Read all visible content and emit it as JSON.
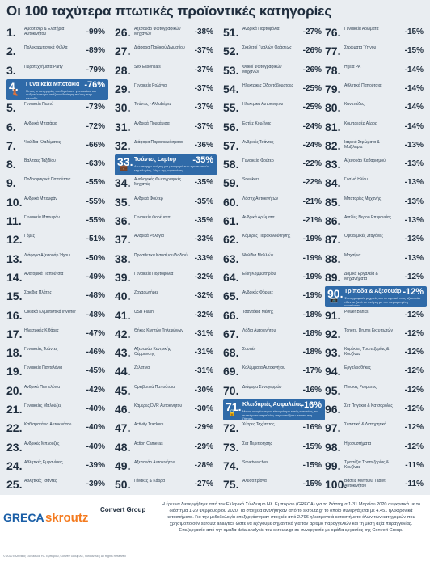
{
  "title": "Οι 100 ταχύτερα πτωτικές προϊοντικές κατηγορίες",
  "columns": [
    [
      {
        "n": "1.",
        "name": "Αμορτισέρ & Ελατήρια Αυτοκινήτου",
        "pct": "-99%"
      },
      {
        "n": "2.",
        "name": "Πολυκαρμπονικά Φύλλα",
        "pct": "-89%"
      },
      {
        "n": "3.",
        "name": "Πυροτεχνήματα Party",
        "pct": "-79%"
      },
      {
        "n": "4.",
        "name": "Γυναικεία Μποτάκια",
        "pct": "-76%",
        "hl": true,
        "desc": "Όπως οι κατηγορίες υποδημάτων, γυναικείων και ανδρικών παρουσιάζουν ιδιαίτερη πτώση στην περίοδο.",
        "icon": "boot-icon"
      },
      {
        "n": "5.",
        "name": "Γυναικεία Παλτό",
        "pct": "-73%"
      },
      {
        "n": "6.",
        "name": "Ανδρικά Μποτάκια",
        "pct": "-72%"
      },
      {
        "n": "7.",
        "name": "Ψαλίδια Κλαδέματος",
        "pct": "-66%"
      },
      {
        "n": "8.",
        "name": "Βαλίτσες Ταξιδίου",
        "pct": "-63%"
      },
      {
        "n": "9.",
        "name": "Ποδοσφαιρικά Παπούτσια",
        "pct": "-55%"
      },
      {
        "n": "10.",
        "name": "Ανδρικά Μπουφάν",
        "pct": "-55%"
      },
      {
        "n": "11.",
        "name": "Γυναικεία Μπουφάν",
        "pct": "-55%"
      },
      {
        "n": "12.",
        "name": "Γόβες",
        "pct": "-51%"
      },
      {
        "n": "13.",
        "name": "Διάφορα Αξεσουάρ Ήχου",
        "pct": "-50%"
      },
      {
        "n": "14.",
        "name": "Ανατομικά Παπούτσια",
        "pct": "-49%"
      },
      {
        "n": "15.",
        "name": "Σακίδια Πλάτης",
        "pct": "-48%"
      },
      {
        "n": "16.",
        "name": "Οικιακά Κλιματιστικά Inverter",
        "pct": "-48%"
      },
      {
        "n": "17.",
        "name": "Ηλεκτρικές Κιθάρες",
        "pct": "-47%"
      },
      {
        "n": "18.",
        "name": "Γυναικείες Τσάντες",
        "pct": "-46%"
      },
      {
        "n": "19.",
        "name": "Γυναικεία Παντελόνια",
        "pct": "-45%"
      },
      {
        "n": "20.",
        "name": "Ανδρικά Παντελόνια",
        "pct": "-42%"
      },
      {
        "n": "21.",
        "name": "Γυναικείες Μπλούζες",
        "pct": "-40%"
      },
      {
        "n": "22.",
        "name": "Καθισματάκια Αυτοκινήτου",
        "pct": "-40%"
      },
      {
        "n": "23.",
        "name": "Ανδρικές Μπλούζες",
        "pct": "-40%"
      },
      {
        "n": "24.",
        "name": "Αθλητικές Εμφανίσεις",
        "pct": "-39%"
      },
      {
        "n": "25.",
        "name": "Αθλητικές Τσάντες",
        "pct": "-39%"
      }
    ],
    [
      {
        "n": "26.",
        "name": "Αξεσουάρ Φωτογραφικών Μηχανών",
        "pct": "-38%"
      },
      {
        "n": "27.",
        "name": "Διάφορα Παιδικού Δωματίου",
        "pct": "-37%"
      },
      {
        "n": "28.",
        "name": "Sex Essentials",
        "pct": "-37%"
      },
      {
        "n": "29.",
        "name": "Γυναικεία Ρολόγια",
        "pct": "-37%"
      },
      {
        "n": "30.",
        "name": "Τσάντες - Αλλαξιέρες",
        "pct": "-37%"
      },
      {
        "n": "31.",
        "name": "Ανδρικά Πουκάμισα",
        "pct": "-37%"
      },
      {
        "n": "32.",
        "name": "Διάφορα Παρασκευάσματα",
        "pct": "-36%"
      },
      {
        "n": "33.",
        "name": "Τσάντες Laptop",
        "pct": "-35%",
        "hl": true,
        "desc": "Δεν υπάρχει ανάγκη για μεταφορά των προσωπικών τεχνολογίας, λόγω της καραντίνας.",
        "icon": "laptop-bag-icon"
      },
      {
        "n": "34.",
        "name": "Αναλογικές Φωτογραφικές Μηχανές",
        "pct": "-35%"
      },
      {
        "n": "35.",
        "name": "Ανδρικά Φούτερ",
        "pct": "-35%"
      },
      {
        "n": "36.",
        "name": "Γυναικεία Φορέματα",
        "pct": "-35%"
      },
      {
        "n": "37.",
        "name": "Ανδρικά Ρολόγια",
        "pct": "-33%"
      },
      {
        "n": "38.",
        "name": "Προσθετικά Καυσίμου/Λαδιού",
        "pct": "-33%"
      },
      {
        "n": "39.",
        "name": "Γυναικεία Πορτοφόλια",
        "pct": "-32%"
      },
      {
        "n": "40.",
        "name": "Ζαχαρωτήρες",
        "pct": "-32%"
      },
      {
        "n": "41.",
        "name": "USB Flash",
        "pct": "-32%"
      },
      {
        "n": "42.",
        "name": "Θήκες Κινητών Τηλεφώνων",
        "pct": "-31%"
      },
      {
        "n": "43.",
        "name": "Αξεσουάρ Κεντρικής Θέρμανσης",
        "pct": "-31%"
      },
      {
        "n": "44.",
        "name": "Ζελατίνα",
        "pct": "-31%"
      },
      {
        "n": "45.",
        "name": "Ορειβατικά Παπούτσια",
        "pct": "-30%"
      },
      {
        "n": "46.",
        "name": "Κάμερες/DVR Αυτοκινήτου",
        "pct": "-30%"
      },
      {
        "n": "47.",
        "name": "Activity Trackers",
        "pct": "-29%"
      },
      {
        "n": "48.",
        "name": "Action Cameras",
        "pct": "-29%"
      },
      {
        "n": "49.",
        "name": "Αξεσουάρ Αυτοκινήτου",
        "pct": "-28%"
      },
      {
        "n": "50.",
        "name": "Πίνακες & Κάδρα",
        "pct": "-27%"
      }
    ],
    [
      {
        "n": "51.",
        "name": "Ανδρικά Πορτοφόλια",
        "pct": "-27%"
      },
      {
        "n": "52.",
        "name": "Σκελετοί Γυαλιών Οράσεως",
        "pct": "-26%"
      },
      {
        "n": "53.",
        "name": "Φακοί Φωτογραφικών Μηχανών",
        "pct": "-26%"
      },
      {
        "n": "54.",
        "name": "Ηλεκτρικές Οδοντόβουρτσες",
        "pct": "-25%"
      },
      {
        "n": "55.",
        "name": "Ηλεκτρικά Αυτοκινήτου",
        "pct": "-25%"
      },
      {
        "n": "56.",
        "name": "Εστίες Κουζίνας",
        "pct": "-24%"
      },
      {
        "n": "57.",
        "name": "Ανδρικές Τσάντες",
        "pct": "-24%"
      },
      {
        "n": "58.",
        "name": "Γυναικεία Φούτερ",
        "pct": "-22%"
      },
      {
        "n": "59.",
        "name": "Sneakers",
        "pct": "-22%"
      },
      {
        "n": "60.",
        "name": "Λάστιχ Αυτοκινήτων",
        "pct": "-21%"
      },
      {
        "n": "61.",
        "name": "Ανδρικά Αρώματα",
        "pct": "-21%"
      },
      {
        "n": "62.",
        "name": "Κάμερες Παρακολούθησης",
        "pct": "-19%"
      },
      {
        "n": "63.",
        "name": "Ψαλίδια Μαλλιών",
        "pct": "-19%"
      },
      {
        "n": "64.",
        "name": "Είδη Κομμωτηρίου",
        "pct": "-19%"
      },
      {
        "n": "65.",
        "name": "Ανδρικές Φόρμες",
        "pct": "-19%"
      },
      {
        "n": "66.",
        "name": "Τσαντάκια Μέσης",
        "pct": "-18%"
      },
      {
        "n": "67.",
        "name": "Λάδια Αυτοκινήτου",
        "pct": "-18%"
      },
      {
        "n": "68.",
        "name": "Σουτιέν",
        "pct": "-18%"
      },
      {
        "n": "69.",
        "name": "Καλύμματα Αυτοκινήτου",
        "pct": "-17%"
      },
      {
        "n": "70.",
        "name": "Διάφορα Συναγερμών",
        "pct": "-16%"
      },
      {
        "n": "71.",
        "name": "Κλειδαριές Ασφαλείας",
        "pct": "-16%",
        "hl": true,
        "desc": "Με τις οικογένειες να είναι μόνιμα εντός κατοικίας, τα συστήματα ασφαλείας παρουσιάζουν πτώση στη ζήτηση.",
        "icon": "lock-icon"
      },
      {
        "n": "72.",
        "name": "Χύτρες Ταχύτητας",
        "pct": "-16%"
      },
      {
        "n": "73.",
        "name": "Σετ Περιποίησης",
        "pct": "-15%"
      },
      {
        "n": "74.",
        "name": "Smartwatches",
        "pct": "-15%"
      },
      {
        "n": "75.",
        "name": "Αλυσοπρίονα",
        "pct": "-15%"
      }
    ],
    [
      {
        "n": "76.",
        "name": "Γυναικεία Αρώματα",
        "pct": "-15%"
      },
      {
        "n": "77.",
        "name": "Στρώματα Ύπνου",
        "pct": "-15%"
      },
      {
        "n": "78.",
        "name": "Ηχεία PA",
        "pct": "-14%"
      },
      {
        "n": "79.",
        "name": "Αθλητικά Παπούτσια",
        "pct": "-14%"
      },
      {
        "n": "80.",
        "name": "Καναπέδες",
        "pct": "-14%"
      },
      {
        "n": "81.",
        "name": "Κομπρεσέρ Αέρος",
        "pct": "-14%"
      },
      {
        "n": "82.",
        "name": "Ιατρικά Στρώματα & Μαξιλάρια",
        "pct": "-13%"
      },
      {
        "n": "83.",
        "name": "Αξεσουάρ Καθαρισμού",
        "pct": "-13%"
      },
      {
        "n": "84.",
        "name": "Γυαλιά Ηλίου",
        "pct": "-13%"
      },
      {
        "n": "85.",
        "name": "Μπαταρίες Μηχανής",
        "pct": "-13%"
      },
      {
        "n": "86.",
        "name": "Αντλίες Νερού Επιφανείας",
        "pct": "-13%"
      },
      {
        "n": "87.",
        "name": "Οφθαλμικές Σταγόνες",
        "pct": "-13%"
      },
      {
        "n": "88.",
        "name": "Μαχαίρια",
        "pct": "-13%"
      },
      {
        "n": "89.",
        "name": "Δομικά Εργαλεία & Μηχανήματα",
        "pct": "-12%"
      },
      {
        "n": "90.",
        "name": "Τρίποδα & Αξεσουάρ",
        "pct": "-12%",
        "hl": true,
        "desc": "Φωτογραφικές μηχανές και τα σχετικά τους αξεσουάρ τίθενται ξανά σε ανάγκη με την περιορισμένη μετακίνηση.",
        "icon": "camera-icon"
      },
      {
        "n": "91.",
        "name": "Power Banks",
        "pct": "-12%"
      },
      {
        "n": "92.",
        "name": "Toners, Drums Εκτυπωτών",
        "pct": "-12%"
      },
      {
        "n": "93.",
        "name": "Καρέκλες Τραπεζαρίας & Κουζίνας",
        "pct": "-12%"
      },
      {
        "n": "94.",
        "name": "Εργαλειοθήκες",
        "pct": "-12%"
      },
      {
        "n": "95.",
        "name": "Πίνακες Ρεύματος",
        "pct": "-12%"
      },
      {
        "n": "96.",
        "name": "Σετ Πηγάκια & Κατσαρόλες",
        "pct": "-12%"
      },
      {
        "n": "97.",
        "name": "Σκαστικά & Διατηρητικά",
        "pct": "-12%"
      },
      {
        "n": "98.",
        "name": "Ηχοσυστήματα",
        "pct": "-12%"
      },
      {
        "n": "99.",
        "name": "Τραπέζια Τραπεζαρίας & Κουζίνας",
        "pct": "-11%"
      },
      {
        "n": "100.",
        "name": "Βάσεις Κινητών/ Tablet Αυτοκινήτου",
        "pct": "-11%"
      }
    ]
  ],
  "footer": {
    "logos": {
      "greca": "GRECA",
      "skroutz": "skroutz",
      "convert": "Convert Group"
    },
    "copyright": "© 2020 Ελληνικός Σύνδεσμος Ηλ. Εμπορίου, Convert Group AE, Skroutz AE | All Rights Reserved",
    "note": "Η έρευνα διενεργήθηκε από τον Ελληνικό Σύνδεσμο Ηλ. Εμπορίου (GRECA) για το διάστημα 1-31 Μαρτίου 2020 συγκριτικά με το διάστημα 1-29 Φεβρουαρίου 2020. Τα στοιχεία αντλήθηκαν από το skroutz.gr το οποίο συνεργάζεται με 4.451 ηλεκτρονικά καταστήματα. Για την μεθοδολογία επεξεργάστηκαν στοιχεία από 2.796 ηλεκτρονικά καταστήματα όλων των κατηγοριών που χρησιμοποιούν skroutz analytics ώστε να εξάγουμε σημαντικά για τον αριθμό παραγγελιών και τη μέση αξία παραγγελίας. Επεξεργασία από την ομάδα data analysis του skroutz.gr σε συνεργασία με ομάδα εργασίας της Convert Group."
  }
}
